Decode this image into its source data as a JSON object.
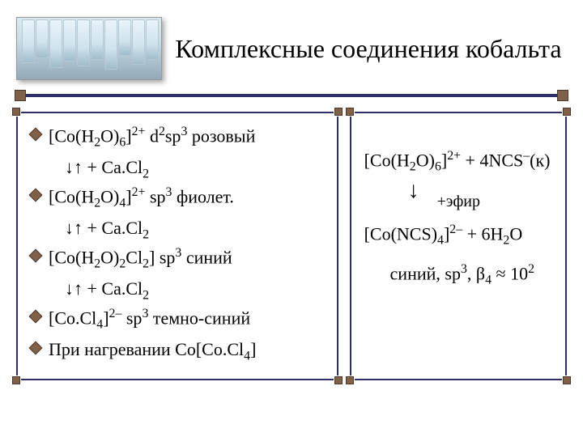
{
  "title": "Комплексные соединения кобальта",
  "colors": {
    "rule": "#2f2f6a",
    "square": "#806048",
    "square_border": "#4b3a2a",
    "text": "#000000",
    "bg": "#ffffff"
  },
  "photo_strip_heights": [
    54,
    48,
    60,
    52,
    58,
    50,
    62,
    45,
    56,
    50
  ],
  "left": {
    "l1a": "[Co(H",
    "l1b": "O)",
    "l1c": "]",
    "l1d": "  d",
    "l1e": "sp",
    "l1f": " розовый",
    "react": " + Ca.Cl",
    "l2a": "[Co(H",
    "l2b": "O)",
    "l2c": "]",
    "l2d": "  sp",
    "l2e": " фиолет.",
    "l3a": "[Co(H",
    "l3b": "O)",
    "l3c": "Cl",
    "l3d": "]  sp",
    "l3e": " синий",
    "l4a": "[Co.Cl",
    "l4b": "]",
    "l4c": "   sp",
    "l4d": " темно-синий",
    "l5": "При нагревании Co[Co.Cl",
    "l5b": "]"
  },
  "right": {
    "r1a": "[Co(H",
    "r1b": "O)",
    "r1c": "]",
    "r1d": " + 4NCS",
    "r1e": "(к)",
    "arrow_label": "+эфир",
    "r2a": "[Co(NCS)",
    "r2b": "]",
    "r2c": " + 6H",
    "r2d": "O",
    "r3a": "синий, sp",
    "r3b": ", β",
    "r3c": " ≈ 10"
  }
}
